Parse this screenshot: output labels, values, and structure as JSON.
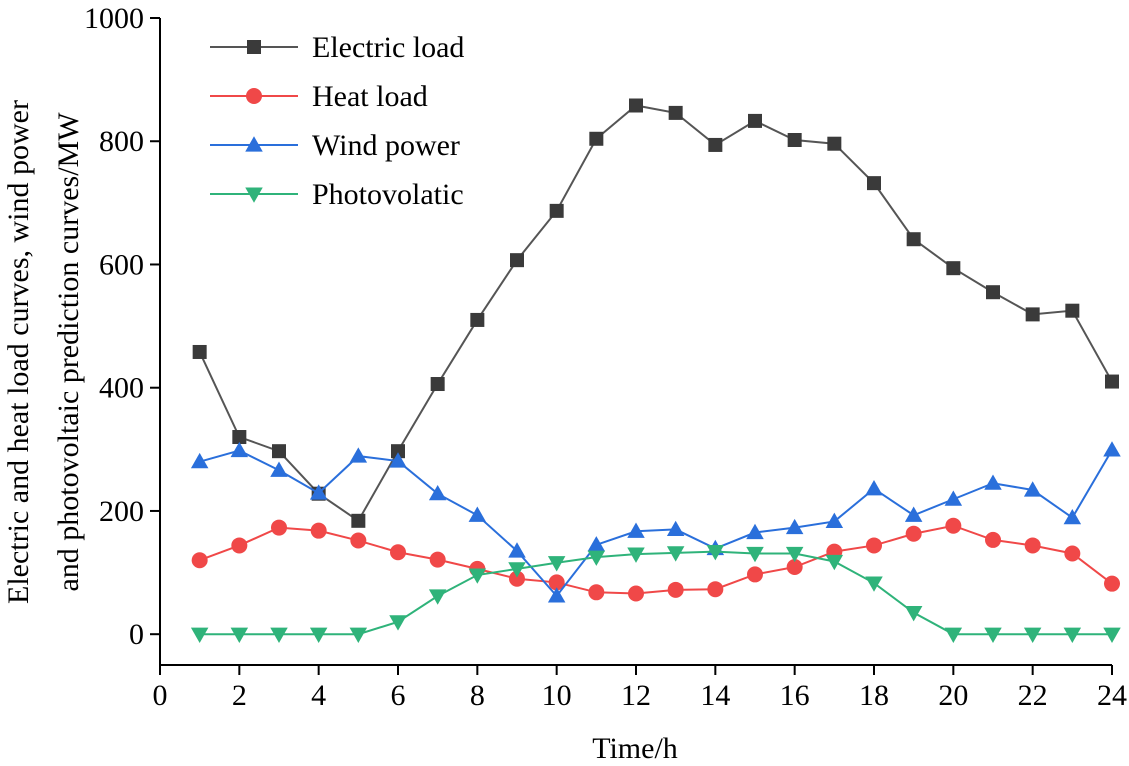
{
  "chart_data": {
    "type": "line",
    "title": "",
    "xlabel": "Time/h",
    "ylabel_line1": "Electric and heat load curves, wind power",
    "ylabel_line2": "and photovoltaic prediction curves/MW",
    "xlim": [
      0,
      24
    ],
    "ylim": [
      -50,
      1000
    ],
    "xticks": [
      0,
      2,
      4,
      6,
      8,
      10,
      12,
      14,
      16,
      18,
      20,
      22,
      24
    ],
    "yticks": [
      0,
      200,
      400,
      600,
      800,
      1000
    ],
    "grid": false,
    "legend_position": "top-left",
    "x": [
      1,
      2,
      3,
      4,
      5,
      6,
      7,
      8,
      9,
      10,
      11,
      12,
      13,
      14,
      15,
      16,
      17,
      18,
      19,
      20,
      21,
      22,
      23,
      24
    ],
    "series": [
      {
        "name": "Electric load",
        "color": "#3a3a3a",
        "line_color": "#555555",
        "marker": "square",
        "values": [
          458,
          320,
          297,
          228,
          184,
          297,
          406,
          510,
          607,
          687,
          804,
          858,
          846,
          794,
          833,
          802,
          796,
          732,
          641,
          594,
          555,
          519,
          525,
          410
        ]
      },
      {
        "name": "Heat load",
        "color": "#f04848",
        "line_color": "#f04848",
        "marker": "circle",
        "values": [
          120,
          144,
          173,
          168,
          152,
          133,
          121,
          106,
          90,
          84,
          68,
          66,
          72,
          73,
          97,
          109,
          134,
          144,
          163,
          176,
          153,
          144,
          131,
          82
        ]
      },
      {
        "name": "Wind power",
        "color": "#2a6fdb",
        "line_color": "#2a6fdb",
        "marker": "triangle-up",
        "values": [
          280,
          298,
          266,
          229,
          289,
          281,
          228,
          193,
          135,
          62,
          145,
          167,
          170,
          139,
          165,
          173,
          183,
          236,
          193,
          219,
          245,
          234,
          189,
          299
        ]
      },
      {
        "name": "Photovolatic",
        "color": "#2fb37a",
        "line_color": "#2fb37a",
        "marker": "triangle-down",
        "values": [
          0,
          0,
          0,
          0,
          0,
          20,
          62,
          96,
          106,
          116,
          125,
          130,
          132,
          134,
          131,
          131,
          118,
          83,
          35,
          0,
          0,
          0,
          0,
          0
        ]
      }
    ]
  }
}
